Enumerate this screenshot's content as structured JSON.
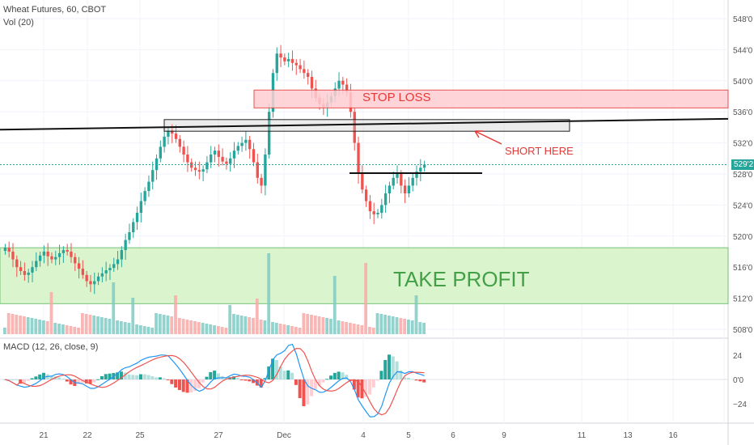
{
  "symbol_title": "Wheat Futures, 60, CBOT",
  "volume_label": "Vol (20)",
  "macd_label": "MACD (12, 26, close, 9)",
  "current_price": "529'2",
  "colors": {
    "up": "#26a69a",
    "down": "#ef5350",
    "stop_zone": "#ffcdd2",
    "stop_border": "#e53935",
    "tp_zone": "#d7f5c9",
    "tp_border": "#66bb6a",
    "price_line": "#26a69a"
  },
  "annotations": {
    "stop_loss": "STOP LOSS",
    "short_here": "SHORT HERE",
    "take_profit": "TAKE PROFIT"
  },
  "price_axis": [
    "548'0",
    "544'0",
    "540'0",
    "536'0",
    "532'0",
    "528'0",
    "524'0",
    "520'0",
    "516'0",
    "512'0",
    "508'0"
  ],
  "macd_axis": [
    "24",
    "0'0",
    "−24"
  ],
  "time_axis": [
    "21",
    "22",
    "25",
    "27",
    "Dec",
    "4",
    "5",
    "6",
    "9",
    "11",
    "13",
    "16"
  ],
  "chart_data": {
    "type": "candlestick",
    "y_unit": "cents/bushel",
    "ylim": [
      508,
      549
    ],
    "price_series_approx": [
      518.5,
      518.0,
      517.0,
      516.0,
      515.5,
      515.0,
      515.3,
      516.0,
      516.8,
      517.5,
      518.0,
      517.4,
      517.0,
      517.3,
      517.8,
      518.2,
      518.0,
      517.3,
      516.5,
      515.8,
      515.0,
      514.2,
      513.8,
      514.2,
      514.8,
      515.2,
      515.6,
      515.9,
      516.4,
      517.0,
      518.2,
      519.5,
      520.5,
      521.8,
      523.0,
      524.5,
      525.8,
      527.0,
      528.5,
      530.0,
      531.5,
      532.8,
      533.6,
      533.2,
      532.5,
      531.5,
      530.5,
      529.5,
      528.8,
      528.5,
      528.3,
      528.6,
      529.5,
      530.5,
      531.0,
      530.2,
      529.6,
      529.3,
      530.0,
      531.0,
      531.6,
      532.0,
      532.4,
      531.2,
      529.5,
      527.5,
      526.5,
      530.5,
      536.0,
      541.0,
      543.5,
      543.0,
      542.5,
      542.8,
      542.3,
      542.0,
      541.5,
      541.0,
      540.5,
      539.0,
      537.8,
      537.0,
      536.6,
      537.2,
      538.0,
      539.0,
      540.0,
      539.5,
      538.5,
      536.0,
      532.0,
      528.0,
      526.0,
      524.5,
      523.2,
      522.8,
      523.0,
      524.0,
      525.5,
      526.5,
      527.5,
      528.0,
      526.5,
      525.5,
      526.5,
      527.5,
      528.3,
      528.8,
      529.2
    ],
    "volume_highlights": [
      {
        "date": "22",
        "volume": "high"
      },
      {
        "date": "25",
        "volume": "high"
      },
      {
        "date": "Dec",
        "volume": "highest"
      },
      {
        "date": "4",
        "volume": "high"
      }
    ],
    "macd": {
      "range": [
        -30,
        30
      ]
    }
  },
  "levels": {
    "stop_loss_zone": [
      536.5,
      538.8
    ],
    "short_zone": [
      533.5,
      535.0
    ],
    "take_profit_zone": [
      511.3,
      518.5
    ],
    "short_entry": 528.1,
    "trend_line": {
      "from": 533.7,
      "to": 535.1
    }
  }
}
